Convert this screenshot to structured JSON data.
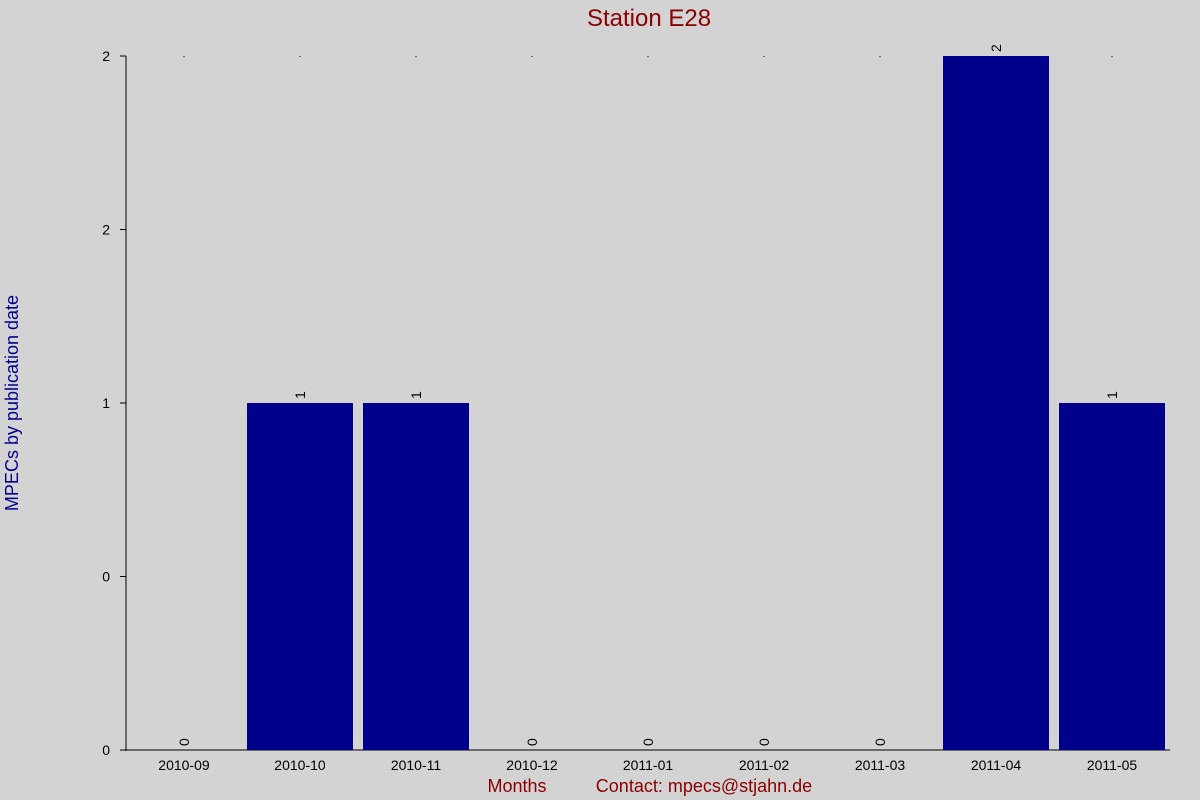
{
  "chart_data": {
    "type": "bar",
    "title": "Station E28",
    "x_label": "Months",
    "contact": "Contact: mpecs@stjahn.de",
    "y_label": "MPECs by publication date",
    "categories": [
      "2010-09",
      "2010-10",
      "2010-11",
      "2010-12",
      "2011-01",
      "2011-02",
      "2011-03",
      "2011-04",
      "2011-05"
    ],
    "values": [
      0,
      1,
      1,
      0,
      0,
      0,
      0,
      2,
      1
    ],
    "color": "#00008b",
    "ylim": [
      0,
      2
    ],
    "yticks": [
      0,
      {
        "value": 0.5,
        "label": "0"
      },
      1,
      {
        "value": 1.5,
        "label": "2"
      },
      2
    ]
  }
}
